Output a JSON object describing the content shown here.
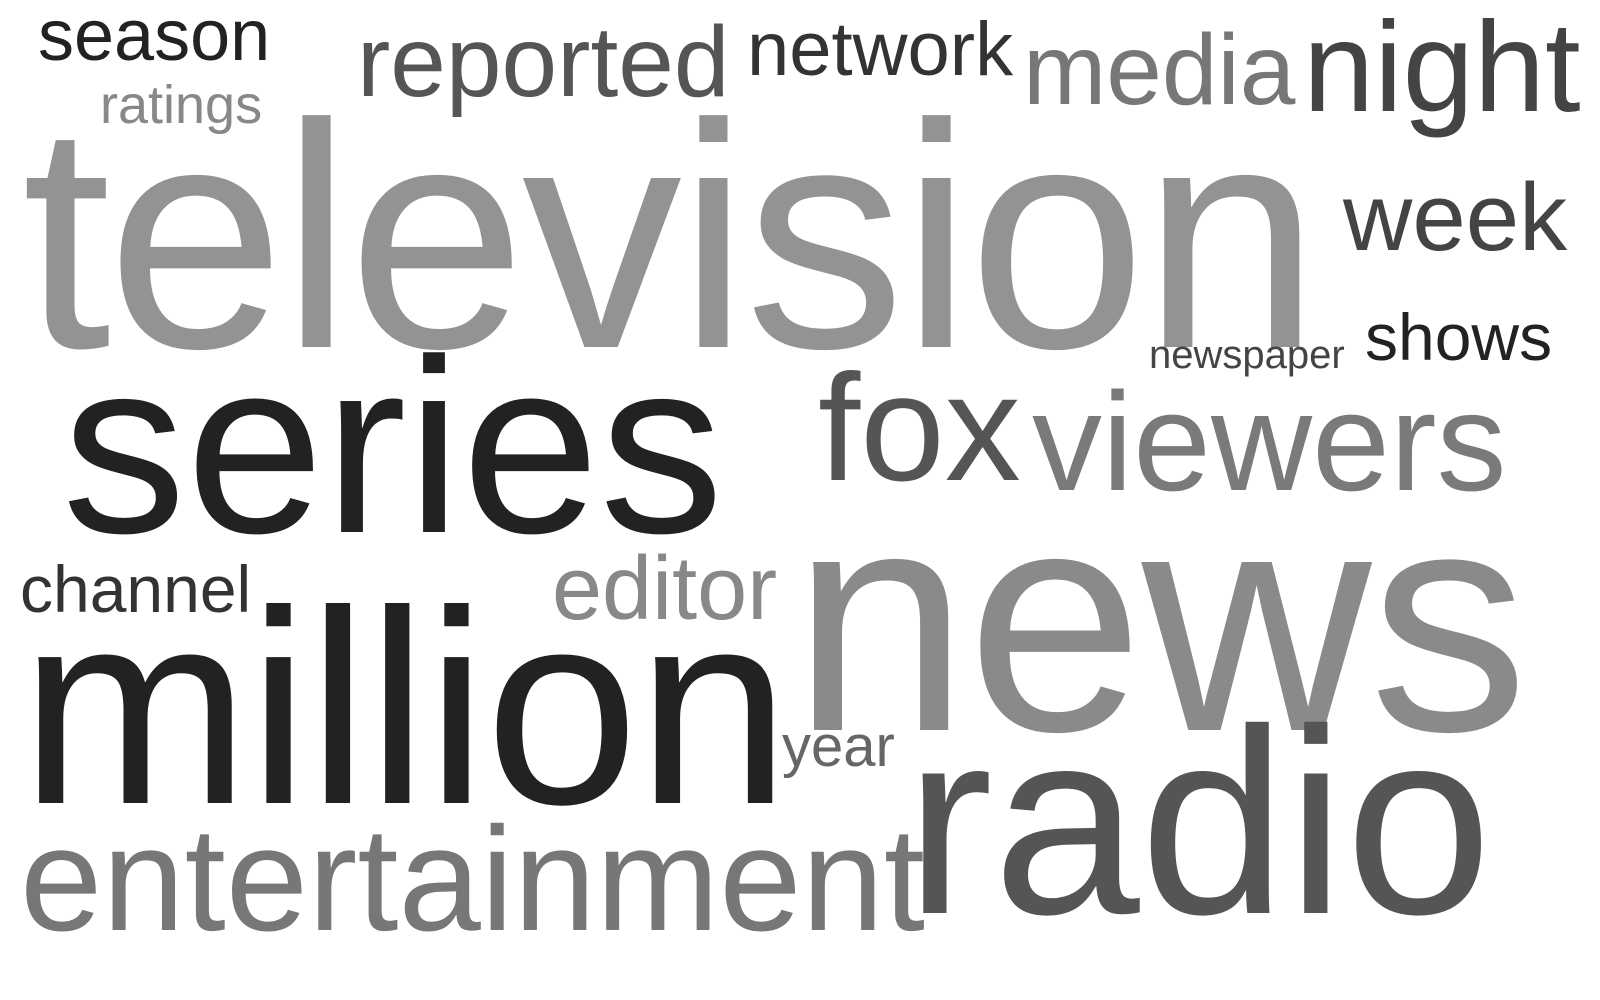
{
  "word_cloud": {
    "words": [
      {
        "text": "season",
        "color": "#222222"
      },
      {
        "text": "ratings",
        "color": "#888888"
      },
      {
        "text": "reported",
        "color": "#555555"
      },
      {
        "text": "network",
        "color": "#333333"
      },
      {
        "text": "media",
        "color": "#777777"
      },
      {
        "text": "night",
        "color": "#444444"
      },
      {
        "text": "television",
        "color": "#939393"
      },
      {
        "text": "week",
        "color": "#444444"
      },
      {
        "text": "newspaper",
        "color": "#444444"
      },
      {
        "text": "shows",
        "color": "#222222"
      },
      {
        "text": "series",
        "color": "#222222"
      },
      {
        "text": "fox",
        "color": "#555555"
      },
      {
        "text": "viewers",
        "color": "#7a7a7a"
      },
      {
        "text": "channel",
        "color": "#333333"
      },
      {
        "text": "editor",
        "color": "#888888"
      },
      {
        "text": "news",
        "color": "#8a8a8a"
      },
      {
        "text": "million",
        "color": "#222222"
      },
      {
        "text": "year",
        "color": "#666666"
      },
      {
        "text": "radio",
        "color": "#555555"
      },
      {
        "text": "entertainment",
        "color": "#777777"
      }
    ]
  }
}
